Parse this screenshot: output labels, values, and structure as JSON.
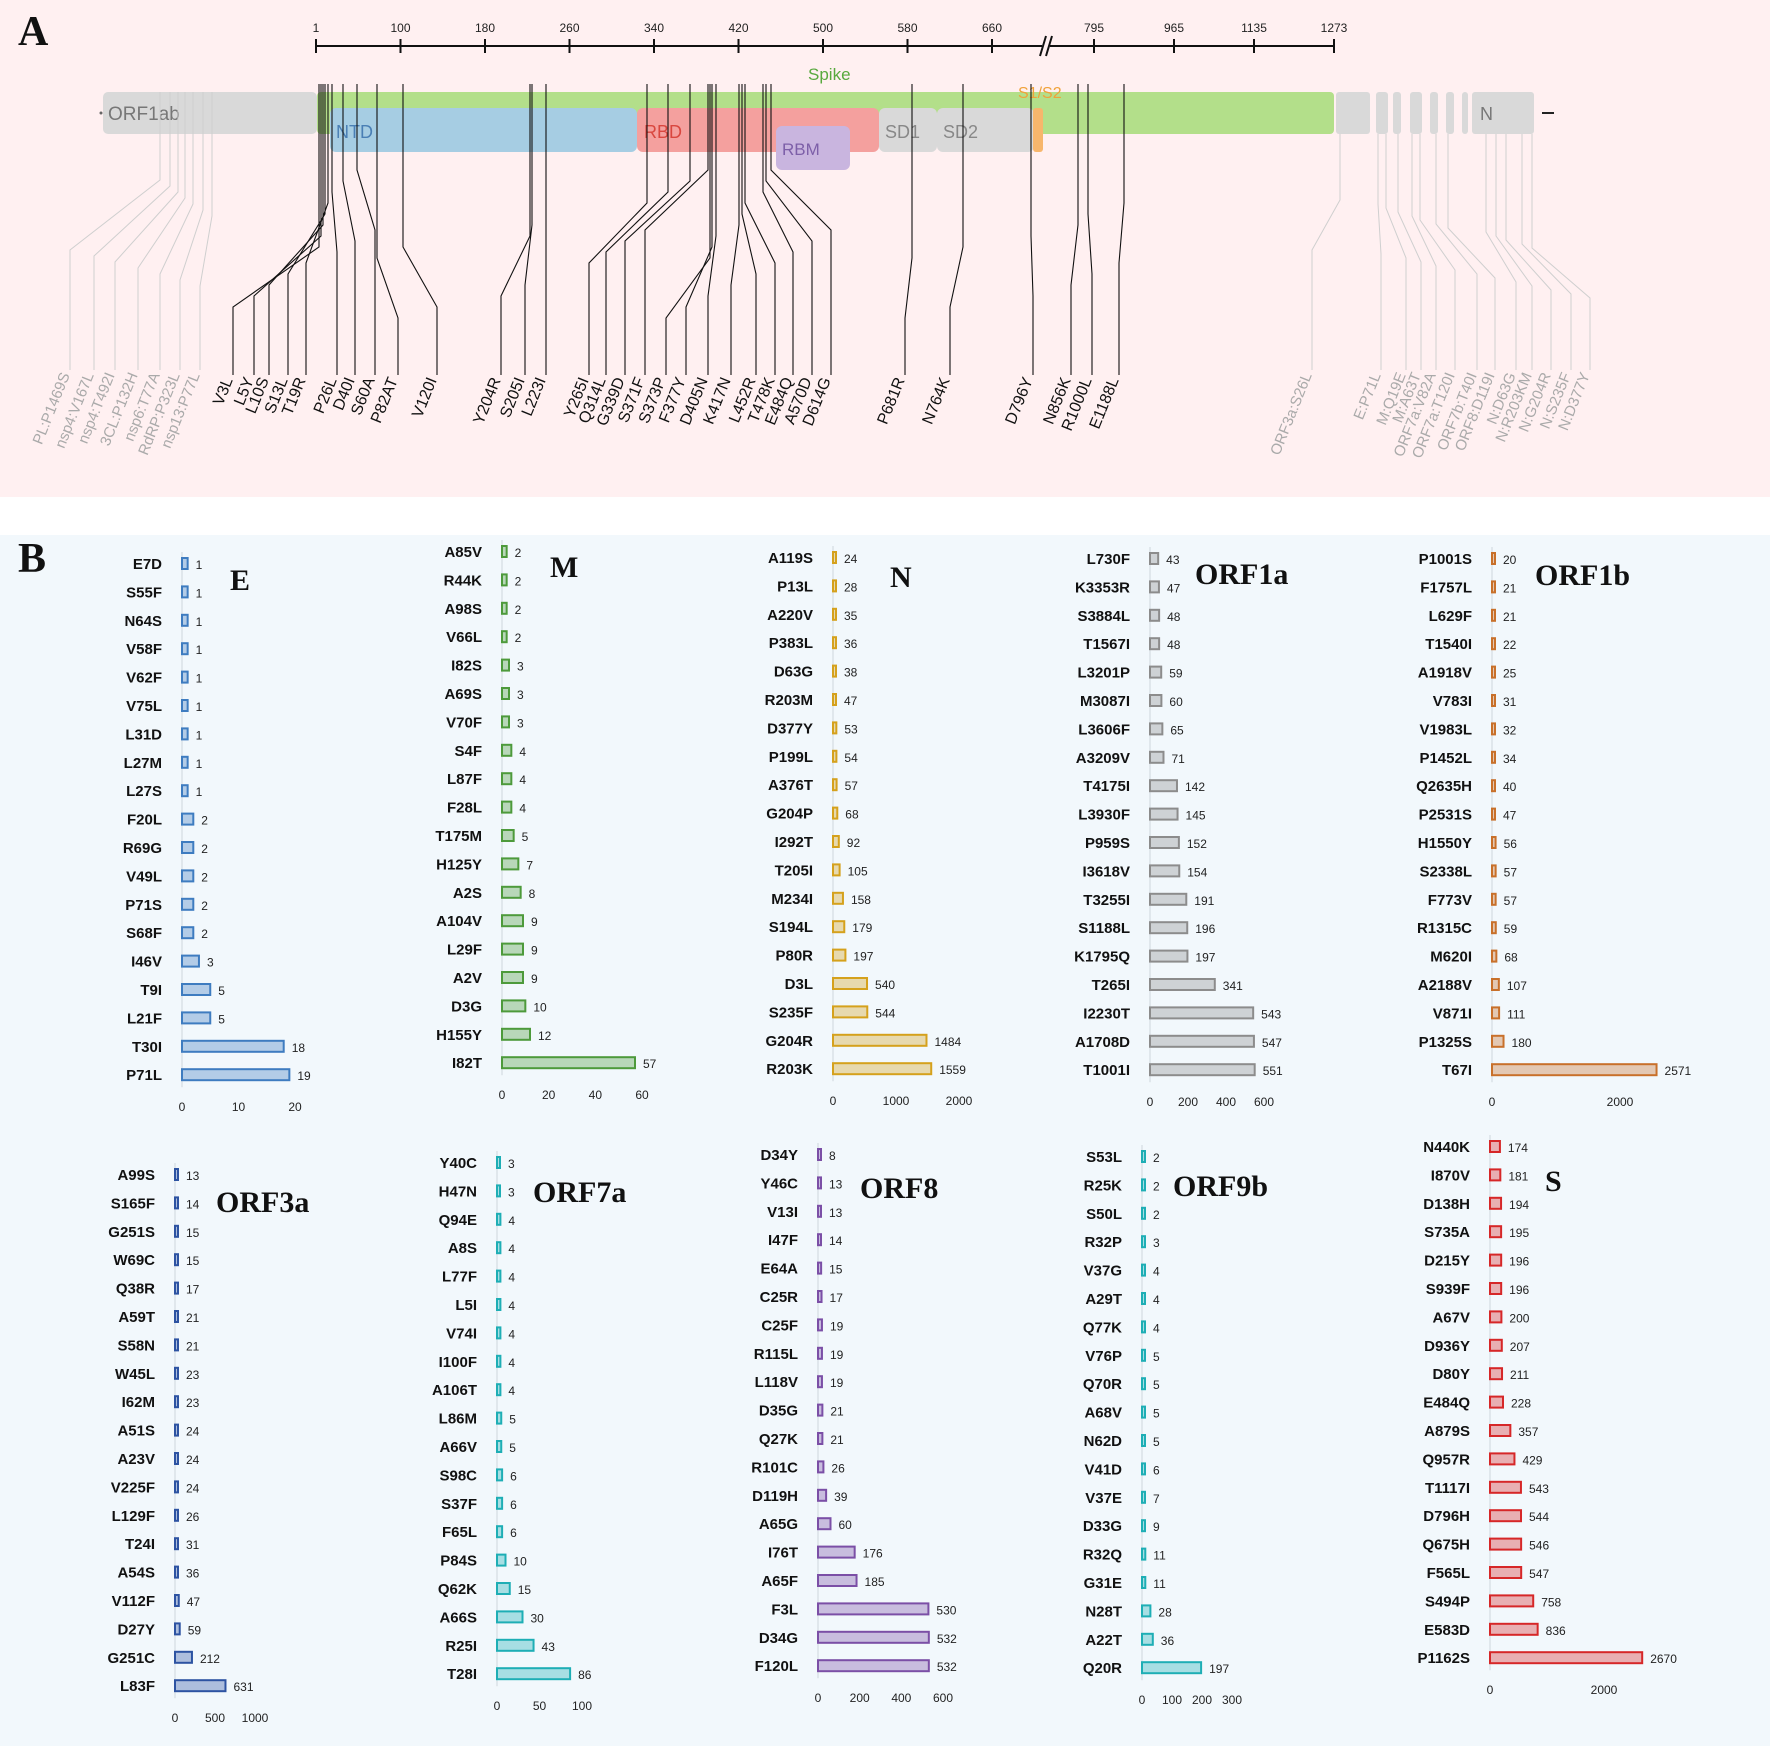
{
  "panel_labels": {
    "a": "A",
    "b": "B"
  },
  "colors": {
    "panel_a_bg": "#fff0f1",
    "panel_b_bg": "#f2f8fc",
    "spike": "#b3df8a",
    "orf_gray": "#d9d9d9",
    "ntd": "#a6cde3",
    "rbd": "#f4a09e",
    "rbm": "#c9b5df",
    "s1s2": "#f7b66c",
    "E": "#3e7cc0",
    "M": "#4d9a3b",
    "N": "#d5a11c",
    "ORF1a": "#8c8c8c",
    "ORF1b": "#c8702a",
    "ORF3a": "#2d53a2",
    "ORF7a": "#1eaeb5",
    "ORF8": "#7b4fa6",
    "ORF9b": "#1eaeb5",
    "S": "#d62728"
  },
  "genome_map": {
    "scale_ticks": [
      "1",
      "100",
      "180",
      "260",
      "340",
      "420",
      "500",
      "580",
      "660",
      "795",
      "965",
      "1135",
      "1273"
    ],
    "domains": {
      "orf1ab": "ORF1ab",
      "spike": "Spike",
      "ntd": "NTD",
      "rbd": "RBD",
      "rbm": "RBM",
      "sd1": "SD1",
      "sd2": "SD2",
      "s1s2": "S1/S2",
      "n": "N"
    },
    "spike_mutations": [
      "V3L",
      "L5Y",
      "L10S",
      "S13L",
      "T19R",
      "P26L",
      "D40I",
      "S60A",
      "P82AT",
      "V120I",
      "Y204R",
      "S205I",
      "L223I",
      "Y265I",
      "Q314L",
      "G339D",
      "S371F",
      "S373P",
      "F377Y",
      "D405N",
      "K417N",
      "L452R",
      "T478K",
      "E484Q",
      "A570D",
      "D614G",
      "P681R",
      "N764K",
      "D796Y",
      "N856K",
      "R1000L",
      "E1188L"
    ],
    "left_other_mutations": [
      "PL:P1469S",
      "nsp4:V167L",
      "nsp4:T492I",
      "3CL:P132H",
      "nsp6:T77A",
      "RdRP:P323L",
      "nsp13:P77L"
    ],
    "right_other_mutations": [
      "ORF3a:S26L",
      "E:P71L",
      "M:Q19E",
      "M:A63T",
      "ORF7a:V82A",
      "ORF7a:T120I",
      "ORF7b:T40I",
      "ORF8:D119I",
      "N:D63G",
      "N:R203KM",
      "N:G204R",
      "N:S235F",
      "N:D377Y"
    ]
  },
  "chart_data": [
    {
      "type": "bar",
      "orientation": "horizontal",
      "title": "E",
      "categories": [
        "E7D",
        "S55F",
        "N64S",
        "V58F",
        "V62F",
        "V75L",
        "L31D",
        "L27M",
        "L27S",
        "F20L",
        "R69G",
        "V49L",
        "P71S",
        "S68F",
        "I46V",
        "T9I",
        "L21F",
        "T30I",
        "P71L"
      ],
      "values": [
        1,
        1,
        1,
        1,
        1,
        1,
        1,
        1,
        1,
        2,
        2,
        2,
        2,
        2,
        3,
        5,
        5,
        18,
        19
      ],
      "xlim": [
        0,
        25
      ],
      "xticks": [
        "0",
        "10",
        "20"
      ]
    },
    {
      "type": "bar",
      "orientation": "horizontal",
      "title": "M",
      "categories": [
        "A85V",
        "R44K",
        "A98S",
        "V66L",
        "I82S",
        "A69S",
        "V70F",
        "S4F",
        "L87F",
        "F28L",
        "T175M",
        "H125Y",
        "A2S",
        "A104V",
        "L29F",
        "A2V",
        "D3G",
        "H155Y",
        "I82T"
      ],
      "values": [
        2,
        2,
        2,
        2,
        3,
        3,
        3,
        4,
        4,
        4,
        5,
        7,
        8,
        9,
        9,
        9,
        10,
        12,
        57
      ],
      "xlim": [
        0,
        70
      ],
      "xticks": [
        "0",
        "20",
        "40",
        "60"
      ]
    },
    {
      "type": "bar",
      "orientation": "horizontal",
      "title": "N",
      "categories": [
        "A119S",
        "P13L",
        "A220V",
        "P383L",
        "D63G",
        "R203M",
        "D377Y",
        "P199L",
        "A376T",
        "G204P",
        "I292T",
        "T205I",
        "M234I",
        "S194L",
        "P80R",
        "D3L",
        "S235F",
        "G204R",
        "R203K"
      ],
      "values": [
        24,
        28,
        35,
        36,
        38,
        47,
        53,
        54,
        57,
        68,
        92,
        105,
        158,
        179,
        197,
        540,
        544,
        1484,
        1559
      ],
      "xlim": [
        0,
        2000
      ],
      "xticks": [
        "0",
        "1000",
        "2000"
      ]
    },
    {
      "type": "bar",
      "orientation": "horizontal",
      "title": "ORF1a",
      "categories": [
        "L730F",
        "K3353R",
        "S3884L",
        "T1567I",
        "L3201P",
        "M3087I",
        "L3606F",
        "A3209V",
        "T4175I",
        "L3930F",
        "P959S",
        "I3618V",
        "T3255I",
        "S1188L",
        "K1795Q",
        "T265I",
        "I2230T",
        "A1708D",
        "T1001I"
      ],
      "values": [
        43,
        47,
        48,
        48,
        59,
        60,
        65,
        71,
        142,
        145,
        152,
        154,
        191,
        196,
        197,
        341,
        543,
        547,
        551
      ],
      "xlim": [
        0,
        600
      ],
      "xticks": [
        "0",
        "200",
        "400",
        "600"
      ]
    },
    {
      "type": "bar",
      "orientation": "horizontal",
      "title": "ORF1b",
      "categories": [
        "P1001S",
        "F1757L",
        "L629F",
        "T1540I",
        "A1918V",
        "V783I",
        "V1983L",
        "P1452L",
        "Q2635H",
        "P2531S",
        "H1550Y",
        "S2338L",
        "F773V",
        "R1315C",
        "M620I",
        "A2188V",
        "V871I",
        "P1325S",
        "T67I"
      ],
      "values": [
        20,
        21,
        21,
        22,
        25,
        31,
        32,
        34,
        40,
        47,
        56,
        57,
        57,
        59,
        68,
        107,
        111,
        180,
        2571
      ],
      "xlim": [
        0,
        3000
      ],
      "xticks": [
        "0",
        "2000"
      ]
    },
    {
      "type": "bar",
      "orientation": "horizontal",
      "title": "ORF3a",
      "categories": [
        "A99S",
        "S165F",
        "G251S",
        "W69C",
        "Q38R",
        "A59T",
        "S58N",
        "W45L",
        "I62M",
        "A51S",
        "A23V",
        "V225F",
        "L129F",
        "T24I",
        "A54S",
        "V112F",
        "D27Y",
        "G251C",
        "L83F"
      ],
      "values": [
        13,
        14,
        15,
        15,
        17,
        21,
        21,
        23,
        23,
        24,
        24,
        24,
        26,
        31,
        36,
        47,
        59,
        212,
        631
      ],
      "xlim": [
        0,
        1000
      ],
      "xticks": [
        "0",
        "500",
        "1000"
      ]
    },
    {
      "type": "bar",
      "orientation": "horizontal",
      "title": "ORF7a",
      "categories": [
        "Y40C",
        "H47N",
        "Q94E",
        "A8S",
        "L77F",
        "L5I",
        "V74I",
        "I100F",
        "A106T",
        "L86M",
        "A66V",
        "S98C",
        "S37F",
        "F65L",
        "P84S",
        "Q62K",
        "A66S",
        "R25I",
        "T28I"
      ],
      "values": [
        3,
        3,
        4,
        4,
        4,
        4,
        4,
        4,
        4,
        5,
        5,
        6,
        6,
        6,
        10,
        15,
        30,
        43,
        86
      ],
      "xlim": [
        0,
        100
      ],
      "xticks": [
        "0",
        "50",
        "100"
      ]
    },
    {
      "type": "bar",
      "orientation": "horizontal",
      "title": "ORF8",
      "categories": [
        "D34Y",
        "Y46C",
        "V13I",
        "I47F",
        "E64A",
        "C25R",
        "C25F",
        "R115L",
        "L118V",
        "D35G",
        "Q27K",
        "R101C",
        "D119H",
        "A65G",
        "I76T",
        "A65F",
        "F3L",
        "D34G",
        "F120L"
      ],
      "values": [
        8,
        13,
        13,
        14,
        15,
        17,
        19,
        19,
        19,
        21,
        21,
        26,
        39,
        60,
        176,
        185,
        530,
        532,
        532
      ],
      "xlim": [
        0,
        600
      ],
      "xticks": [
        "0",
        "200",
        "400",
        "600"
      ]
    },
    {
      "type": "bar",
      "orientation": "horizontal",
      "title": "ORF9b",
      "categories": [
        "S53L",
        "R25K",
        "S50L",
        "R32P",
        "V37G",
        "A29T",
        "Q77K",
        "V76P",
        "Q70R",
        "A68V",
        "N62D",
        "V41D",
        "V37E",
        "D33G",
        "R32Q",
        "G31E",
        "N28T",
        "A22T",
        "Q20R"
      ],
      "values": [
        2,
        2,
        2,
        3,
        4,
        4,
        4,
        5,
        5,
        5,
        5,
        6,
        7,
        9,
        11,
        11,
        28,
        36,
        197
      ],
      "xlim": [
        0,
        300
      ],
      "xticks": [
        "0",
        "100",
        "200",
        "300"
      ]
    },
    {
      "type": "bar",
      "orientation": "horizontal",
      "title": "S",
      "categories": [
        "N440K",
        "I870V",
        "D138H",
        "S735A",
        "D215Y",
        "S939F",
        "A67V",
        "D936Y",
        "D80Y",
        "E484Q",
        "A879S",
        "Q957R",
        "T1117I",
        "D796H",
        "Q675H",
        "F565L",
        "S494P",
        "E583D",
        "P1162S"
      ],
      "values": [
        174,
        181,
        194,
        195,
        196,
        196,
        200,
        207,
        211,
        228,
        357,
        429,
        543,
        544,
        546,
        547,
        758,
        836,
        2670
      ],
      "xlim": [
        0,
        3000
      ],
      "xticks": [
        "0",
        "2000"
      ]
    }
  ]
}
